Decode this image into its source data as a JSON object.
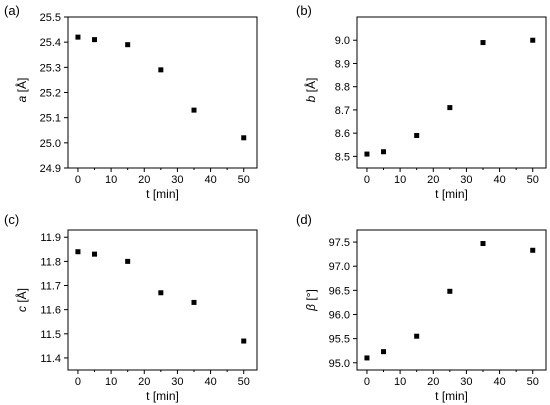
{
  "chart_data": [
    {
      "type": "scatter",
      "panel_label": "(a)",
      "xlabel": "t [min]",
      "ylabel_var": "a",
      "ylabel_unit": " [Å]",
      "xlim": [
        -3,
        54
      ],
      "ylim": [
        24.9,
        25.5
      ],
      "xticks": [
        0,
        10,
        20,
        30,
        40,
        50
      ],
      "yticks": [
        "24.9",
        "25.0",
        "25.1",
        "25.2",
        "25.3",
        "25.4",
        "25.5"
      ],
      "x": [
        0,
        5,
        15,
        25,
        35,
        50
      ],
      "y": [
        25.42,
        25.41,
        25.39,
        25.29,
        25.13,
        25.02
      ]
    },
    {
      "type": "scatter",
      "panel_label": "(b)",
      "xlabel": "t [min]",
      "ylabel_var": "b",
      "ylabel_unit": " [Å]",
      "xlim": [
        -3,
        54
      ],
      "ylim": [
        8.45,
        9.1
      ],
      "xticks": [
        0,
        10,
        20,
        30,
        40,
        50
      ],
      "yticks": [
        "8.5",
        "8.6",
        "8.7",
        "8.8",
        "8.9",
        "9.0"
      ],
      "x": [
        0,
        5,
        15,
        25,
        35,
        50
      ],
      "y": [
        8.51,
        8.52,
        8.59,
        8.71,
        8.99,
        9.0
      ]
    },
    {
      "type": "scatter",
      "panel_label": "(c)",
      "xlabel": "t [min]",
      "ylabel_var": "c",
      "ylabel_unit": " [Å]",
      "xlim": [
        -3,
        54
      ],
      "ylim": [
        11.35,
        11.93
      ],
      "xticks": [
        0,
        10,
        20,
        30,
        40,
        50
      ],
      "yticks": [
        "11.4",
        "11.5",
        "11.6",
        "11.7",
        "11.8",
        "11.9"
      ],
      "x": [
        0,
        5,
        15,
        25,
        35,
        50
      ],
      "y": [
        11.84,
        11.83,
        11.8,
        11.67,
        11.63,
        11.47
      ]
    },
    {
      "type": "scatter",
      "panel_label": "(d)",
      "xlabel": "t [min]",
      "ylabel_var": "β",
      "ylabel_unit": " [°]",
      "xlim": [
        -3,
        54
      ],
      "ylim": [
        94.85,
        97.75
      ],
      "xticks": [
        0,
        10,
        20,
        30,
        40,
        50
      ],
      "yticks": [
        "95.0",
        "95.5",
        "96.0",
        "96.5",
        "97.0",
        "97.5"
      ],
      "x": [
        0,
        5,
        15,
        25,
        35,
        50
      ],
      "y": [
        95.1,
        95.23,
        95.55,
        96.48,
        97.47,
        97.33
      ]
    }
  ]
}
